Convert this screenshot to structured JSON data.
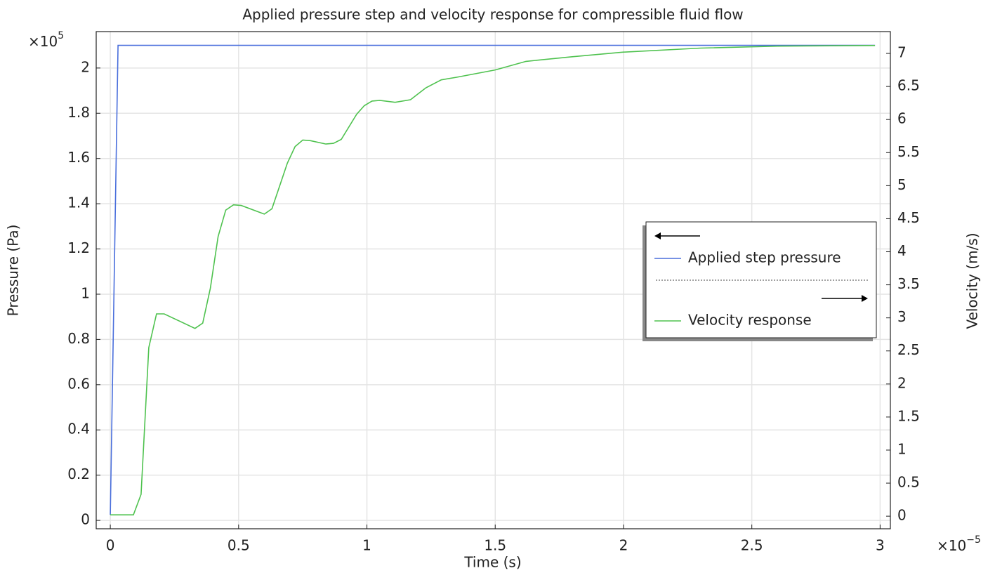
{
  "chart_data": {
    "type": "line",
    "title": "Applied pressure step and velocity response for compressible fluid flow",
    "x_label": "Time (s)",
    "y_label": "Pressure (Pa)",
    "y2_label": "Velocity (m/s)",
    "x_multiplier": {
      "base": "×10",
      "exponent": "−5"
    },
    "y_multiplier": {
      "base": "×10",
      "exponent": "5"
    },
    "xlim": [
      -0.055,
      3.04
    ],
    "xticks": [
      0,
      0.5,
      1,
      1.5,
      2,
      2.5,
      3
    ],
    "ylim": [
      -0.037,
      2.161
    ],
    "yticks": [
      0,
      0.2,
      0.4,
      0.6,
      0.8,
      1,
      1.2,
      1.4,
      1.6,
      1.8,
      2
    ],
    "y2lim": [
      -0.19,
      7.33
    ],
    "y2ticks": [
      0,
      0.5,
      1,
      1.5,
      2,
      2.5,
      3,
      3.5,
      4,
      4.5,
      5,
      5.5,
      6,
      6.5,
      7
    ],
    "grid": true,
    "legend": "right",
    "series": [
      {
        "name": "Applied step pressure",
        "color": "#4a6fdc",
        "axis": "y",
        "x": [
          0,
          0.03,
          2.98
        ],
        "values": [
          0.025,
          2.1,
          2.1
        ]
      },
      {
        "name": "Velocity response",
        "color": "#4fc24f",
        "axis": "y2",
        "x": [
          0,
          0.09,
          0.12,
          0.15,
          0.18,
          0.21,
          0.33,
          0.36,
          0.39,
          0.42,
          0.45,
          0.48,
          0.51,
          0.6,
          0.63,
          0.69,
          0.72,
          0.75,
          0.78,
          0.84,
          0.87,
          0.9,
          0.96,
          0.99,
          1.02,
          1.05,
          1.11,
          1.17,
          1.23,
          1.29,
          1.35,
          1.5,
          1.62,
          1.8,
          2.0,
          2.3,
          2.6,
          2.98
        ],
        "values": [
          0.02,
          0.02,
          0.33,
          2.55,
          3.06,
          3.06,
          2.84,
          2.92,
          3.45,
          4.23,
          4.63,
          4.71,
          4.7,
          4.57,
          4.65,
          5.34,
          5.59,
          5.69,
          5.68,
          5.63,
          5.64,
          5.7,
          6.08,
          6.21,
          6.28,
          6.29,
          6.26,
          6.3,
          6.48,
          6.6,
          6.64,
          6.75,
          6.88,
          6.95,
          7.02,
          7.08,
          7.11,
          7.12
        ]
      }
    ]
  }
}
